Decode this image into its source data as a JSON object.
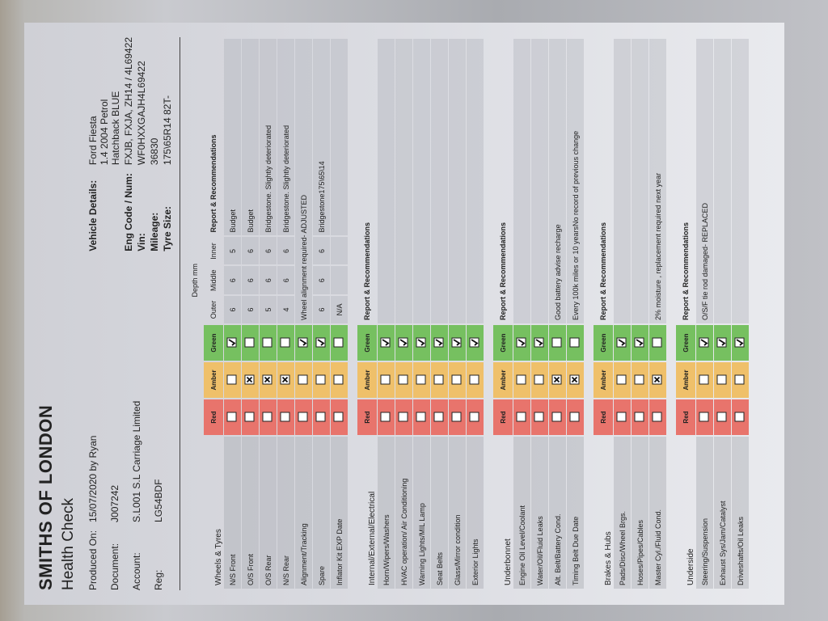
{
  "header": {
    "company": "SMITHS OF LONDON",
    "title": "Health Check"
  },
  "info": [
    {
      "label": "Produced On:",
      "value": "15/07/2020 by Ryan"
    },
    {
      "label": "Document:",
      "value": "J007242"
    },
    {
      "label": "Account:",
      "value": "S.L001   S.L Carriage Limited"
    },
    {
      "label": "Reg:",
      "value": "LG54BDF"
    }
  ],
  "vehicle": [
    {
      "label": "Vehicle Details:",
      "lines": [
        "Ford Fiesta",
        "1.4 2004 Petrol",
        "Hatchback BLUE"
      ]
    },
    {
      "label": "Eng Code / Num:",
      "lines": [
        "FXJB, FXJA, ZH14 / 4L69422"
      ]
    },
    {
      "label": "Vin:",
      "lines": [
        "WF0HXXGAJH4L69422"
      ]
    },
    {
      "label": "Mileage:",
      "lines": [
        "36830"
      ]
    },
    {
      "label": "Tyre Size:",
      "lines": [
        "175\\65R14 82T-"
      ]
    }
  ],
  "sections": [
    {
      "title": "Wheels & Tyres",
      "red": "Red",
      "amber": "Amber",
      "green": "Green",
      "depth_title": "Depth mm",
      "outer": "Outer",
      "middle": "Middle",
      "inner": "Inner",
      "report": "Report & Recommendations",
      "rows": [
        {
          "label": "N/S Front",
          "status": "green",
          "depth": {
            "outer": 6,
            "middle": 6,
            "inner": 5
          },
          "report": "Budget"
        },
        {
          "label": "O/S Front",
          "status": "amber",
          "depth": {
            "outer": 6,
            "middle": 6,
            "inner": 6
          },
          "report": "Budget"
        },
        {
          "label": "O/S Rear",
          "status": "amber",
          "depth": {
            "outer": 5,
            "middle": 6,
            "inner": 6
          },
          "report": "Bridgestone. Slightly deteriorated"
        },
        {
          "label": "N/S Rear",
          "status": "amber",
          "depth": {
            "outer": 4,
            "middle": 6,
            "inner": 6
          },
          "report": "Bridgestone. Slightly deteriorated"
        },
        {
          "label": "Alignment/Tracking",
          "status": "green",
          "report": "Wheel alignment required- ADJUSTED"
        },
        {
          "label": "Spare",
          "status": "green",
          "depth": {
            "outer": 6,
            "middle": 6,
            "inner": 6
          },
          "report": "Bridgestone175\\65\\14"
        },
        {
          "label": "Inflator Kit EXP Date",
          "status": "none",
          "depth": {
            "outer": "N/A"
          }
        }
      ]
    },
    {
      "title": "Internal/External/Electrical",
      "red": "Red",
      "amber": "Amber",
      "green": "Green",
      "report": "Report & Recommendations",
      "rows": [
        {
          "label": "Horn/Wipers/Washers",
          "status": "green"
        },
        {
          "label": "HVAC operation/ Air Conditioning",
          "status": "green"
        },
        {
          "label": "Warning Lights/MIL Lamp",
          "status": "green"
        },
        {
          "label": "Seat Belts",
          "status": "green"
        },
        {
          "label": "Glass/Mirror condition",
          "status": "green"
        },
        {
          "label": "Exterior Lights",
          "status": "green"
        }
      ]
    },
    {
      "title": "Underbonnet",
      "red": "Red",
      "amber": "Amber",
      "green": "Green",
      "report": "Report & Recommendations",
      "rows": [
        {
          "label": "Engine Oil Level/Coolant",
          "status": "green"
        },
        {
          "label": "Water/Oil/Fluid Leaks",
          "status": "green"
        },
        {
          "label": "Alt. Belt/Battery Cond.",
          "status": "amber",
          "report": "Good battery advise recharge"
        },
        {
          "label": "Timing Belt Due Date",
          "status": "amber",
          "report": "Every 100k miles or 10 yearsNo record of previous change"
        }
      ]
    },
    {
      "title": "Brakes & Hubs",
      "red": "Red",
      "amber": "Amber",
      "green": "Green",
      "report": "Report & Recommendations",
      "rows": [
        {
          "label": "Pads/Disc/Wheel Brgs.",
          "status": "green"
        },
        {
          "label": "Hoses/Pipes/Cables",
          "status": "green"
        },
        {
          "label": "Master Cyl./Fluid Cond.",
          "status": "amber",
          "report": "2% moisture , replacement required next year"
        }
      ]
    },
    {
      "title": "Underside",
      "red": "Red",
      "amber": "Amber",
      "green": "Green",
      "report": "Report & Recommendations",
      "rows": [
        {
          "label": "Steering/Suspension",
          "status": "green",
          "report": "O/S/F tie rod damaged- REPLACED"
        },
        {
          "label": "Exhaust Sys/Jam/Catalyst",
          "status": "green"
        },
        {
          "label": "Driveshafts/Oil Leaks",
          "status": "green"
        }
      ]
    }
  ]
}
